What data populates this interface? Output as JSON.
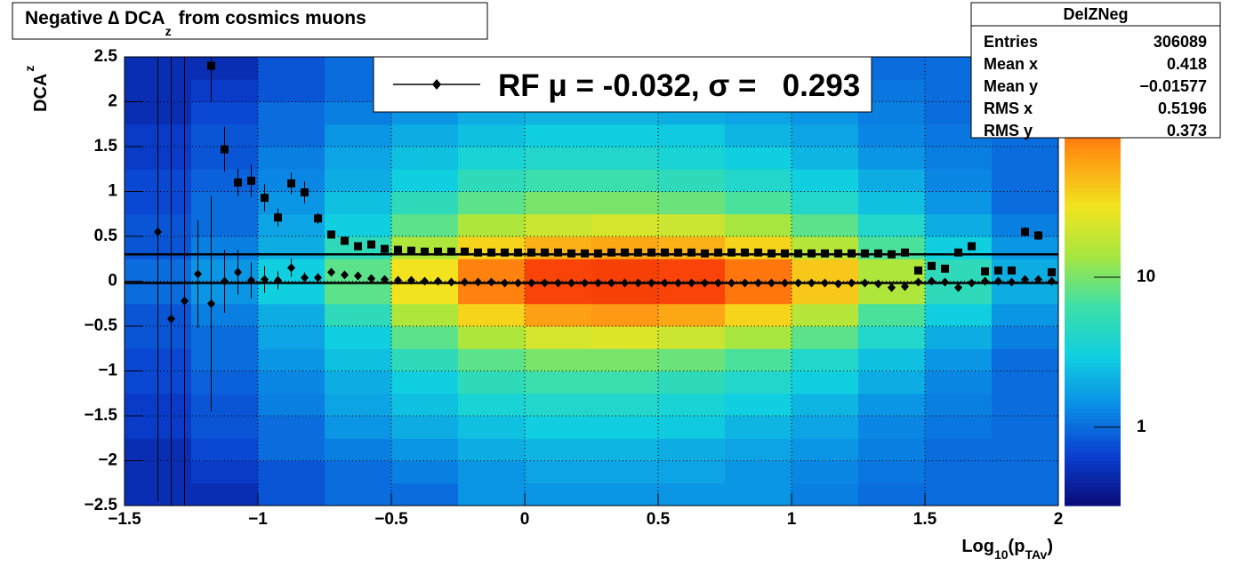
{
  "chart_data": {
    "type": "heatmap-profile",
    "title_parts": [
      "Negative ∆ DCA",
      "z",
      "from cosmics muons"
    ],
    "y_label_parts": [
      "DCA",
      "z"
    ],
    "x_label_parts": [
      "Log",
      "10",
      "(p",
      "TAv",
      ")"
    ],
    "xlim": [
      -1.5,
      2
    ],
    "ylim": [
      -2.5,
      2.5
    ],
    "xticks": [
      {
        "value": -1.5,
        "label": "−1.5"
      },
      {
        "value": -1,
        "label": "−1"
      },
      {
        "value": -0.5,
        "label": "−0.5"
      },
      0,
      0.5,
      1,
      1.5,
      2
    ],
    "yticks": [
      {
        "value": -2.5,
        "label": "−2.5"
      },
      {
        "value": -2,
        "label": "−2"
      },
      {
        "value": -1.5,
        "label": "−1.5"
      },
      {
        "value": -1,
        "label": "−1"
      },
      {
        "value": -0.5,
        "label": "−0.5"
      },
      0,
      0.5,
      1,
      1.5,
      2,
      2.5
    ],
    "grid": true,
    "heatmap": {
      "xbins": [
        -1.5,
        -1.25,
        -1,
        -0.75,
        -0.5,
        -0.25,
        0,
        0.25,
        0.5,
        0.75,
        1,
        1.25,
        1.5,
        1.75,
        2
      ],
      "ybins": [
        -2.5,
        -2.25,
        -2,
        -1.75,
        -1.5,
        -1.25,
        -1,
        -0.75,
        -0.5,
        -0.25,
        0,
        0.25,
        0.5,
        0.75,
        1,
        1.25,
        1.5,
        1.75,
        2,
        2.25,
        2.5
      ],
      "z": [
        [
          0.5,
          0.5,
          0.8,
          1,
          1,
          1.5,
          1.5,
          1.5,
          1.5,
          1.5,
          1.2,
          1,
          1,
          1
        ],
        [
          0.5,
          0.6,
          0.8,
          1,
          1.2,
          1.5,
          1.8,
          1.8,
          1.8,
          1.5,
          1.3,
          1.1,
          1,
          1
        ],
        [
          0.5,
          0.7,
          1,
          1.2,
          1.5,
          2,
          2.2,
          2.2,
          2,
          1.8,
          1.5,
          1.2,
          1,
          1
        ],
        [
          0.6,
          0.8,
          1,
          1.5,
          2,
          2.5,
          3,
          3,
          2.8,
          2.2,
          1.8,
          1.3,
          1.1,
          1
        ],
        [
          0.6,
          0.8,
          1.2,
          1.8,
          2.5,
          3.5,
          4,
          4,
          3.5,
          3,
          2.2,
          1.5,
          1.2,
          1
        ],
        [
          0.7,
          0.9,
          1.3,
          2,
          3,
          5,
          6,
          6,
          5,
          4,
          3,
          2,
          1.3,
          1
        ],
        [
          0.7,
          1,
          1.5,
          2.5,
          5,
          8,
          10,
          10,
          9,
          7,
          4,
          2.5,
          1.5,
          1
        ],
        [
          0.8,
          1,
          1.8,
          3,
          8,
          15,
          22,
          24,
          20,
          14,
          8,
          4,
          2,
          1.2
        ],
        [
          0.8,
          1.2,
          2,
          5,
          15,
          35,
          60,
          65,
          55,
          35,
          16,
          7,
          3,
          1.5
        ],
        [
          1,
          1.5,
          3,
          8,
          30,
          80,
          150,
          160,
          150,
          90,
          40,
          15,
          5,
          2
        ],
        [
          1,
          1.5,
          3,
          8,
          30,
          80,
          150,
          160,
          150,
          90,
          40,
          15,
          5,
          2
        ],
        [
          0.8,
          1.2,
          2,
          5,
          15,
          35,
          50,
          55,
          50,
          35,
          16,
          7,
          3,
          1.5
        ],
        [
          0.8,
          1,
          1.8,
          3,
          8,
          15,
          20,
          22,
          20,
          14,
          8,
          4,
          2,
          1.2
        ],
        [
          0.7,
          1,
          1.5,
          2.5,
          5,
          8,
          10,
          10,
          9,
          7,
          4,
          2.5,
          1.5,
          1
        ],
        [
          0.7,
          0.9,
          1.3,
          2,
          3,
          5,
          6,
          6,
          5,
          4,
          3,
          2,
          1.3,
          1
        ],
        [
          0.6,
          0.8,
          1.2,
          1.8,
          2.5,
          3.5,
          4,
          4,
          3.5,
          3,
          2.2,
          1.5,
          1.2,
          1
        ],
        [
          0.6,
          0.8,
          1,
          1.5,
          2,
          2.5,
          3,
          3,
          2.8,
          2.2,
          1.8,
          1.3,
          1.1,
          1
        ],
        [
          0.5,
          0.7,
          1,
          1.2,
          1.5,
          2,
          2.2,
          2.2,
          2,
          1.8,
          1.5,
          1.2,
          1,
          1
        ],
        [
          0.5,
          0.6,
          0.8,
          1,
          1.2,
          1.5,
          1.8,
          1.8,
          1.8,
          1.5,
          1.3,
          1.1,
          1,
          1
        ],
        [
          0.5,
          0.5,
          0.8,
          1,
          1,
          1.5,
          1.5,
          1.5,
          1.5,
          1.5,
          1.2,
          1,
          1,
          1
        ]
      ],
      "zlim": [
        0.3,
        295
      ],
      "zscale": "log",
      "zticks": [
        1,
        10
      ],
      "palette": [
        "#0b0b7a",
        "#0a3fd0",
        "#0a8ee6",
        "#10cfe0",
        "#3ee0a8",
        "#a6e640",
        "#f2e41e",
        "#ff9a12",
        "#ff4a08",
        "#d81a00"
      ]
    },
    "x": [
      -1.375,
      -1.325,
      -1.275,
      -1.225,
      -1.175,
      -1.125,
      -1.075,
      -1.025,
      -0.975,
      -0.925,
      -0.875,
      -0.825,
      -0.775,
      -0.725,
      -0.675,
      -0.625,
      -0.575,
      -0.525,
      -0.475,
      -0.425,
      -0.375,
      -0.325,
      -0.275,
      -0.225,
      -0.175,
      -0.125,
      -0.075,
      -0.025,
      0.025,
      0.075,
      0.125,
      0.175,
      0.225,
      0.275,
      0.325,
      0.375,
      0.425,
      0.475,
      0.525,
      0.575,
      0.625,
      0.675,
      0.725,
      0.775,
      0.825,
      0.875,
      0.925,
      0.975,
      1.025,
      1.075,
      1.125,
      1.175,
      1.225,
      1.275,
      1.325,
      1.375,
      1.425,
      1.475,
      1.525,
      1.575,
      1.625,
      1.675,
      1.725,
      1.775,
      1.825,
      1.875,
      1.925,
      1.975
    ],
    "series": [
      {
        "marker": "diamond",
        "color": "#000000",
        "values": [
          0.55,
          -0.42,
          -0.22,
          0.08,
          -0.25,
          0.0,
          0.1,
          0.01,
          0.02,
          0.01,
          0.15,
          0.04,
          0.04,
          0.1,
          0.07,
          0.06,
          0.03,
          0.02,
          0.01,
          0.01,
          0.0,
          0.0,
          -0.01,
          -0.01,
          -0.01,
          -0.01,
          -0.02,
          -0.02,
          -0.02,
          -0.02,
          -0.02,
          -0.02,
          -0.02,
          -0.02,
          -0.02,
          -0.02,
          -0.02,
          -0.02,
          -0.02,
          -0.02,
          -0.02,
          -0.02,
          -0.02,
          -0.02,
          -0.02,
          -0.02,
          -0.02,
          -0.02,
          -0.02,
          -0.02,
          -0.02,
          -0.03,
          -0.02,
          -0.02,
          -0.03,
          -0.07,
          -0.06,
          -0.01,
          0.0,
          -0.01,
          -0.07,
          -0.02,
          0.0,
          0.0,
          -0.01,
          0.02,
          0.02,
          0.0
        ],
        "errors": [
          3,
          3,
          3,
          0.6,
          1.2,
          0.35,
          0.25,
          0.2,
          0.15,
          0.1,
          0.1,
          0.06,
          0.05,
          null,
          null,
          null,
          null,
          null,
          null,
          null,
          null,
          null,
          null,
          null,
          null,
          null,
          null,
          null,
          null,
          null,
          null,
          null,
          null,
          null,
          null,
          null,
          null,
          null,
          null,
          null,
          null,
          null,
          null,
          null,
          null,
          null,
          null,
          null,
          null,
          null,
          null,
          null,
          null,
          null,
          null,
          null,
          null,
          null,
          null,
          null,
          null,
          null,
          null,
          null,
          null,
          null,
          null,
          null
        ]
      },
      {
        "marker": "square",
        "color": "#000000",
        "values": [
          null,
          null,
          null,
          null,
          2.4,
          1.47,
          1.1,
          1.12,
          0.93,
          0.71,
          1.09,
          0.99,
          0.7,
          0.52,
          0.45,
          0.39,
          0.41,
          0.36,
          0.35,
          0.34,
          0.33,
          0.33,
          0.33,
          0.33,
          0.32,
          0.32,
          0.32,
          0.32,
          0.32,
          0.32,
          0.32,
          0.31,
          0.31,
          0.31,
          0.32,
          0.32,
          0.32,
          0.32,
          0.32,
          0.32,
          0.32,
          0.31,
          0.32,
          0.32,
          0.32,
          0.32,
          0.31,
          0.31,
          0.31,
          0.31,
          0.31,
          0.31,
          0.31,
          0.31,
          0.31,
          0.3,
          0.32,
          0.12,
          0.17,
          0.14,
          0.32,
          0.39,
          0.11,
          0.12,
          0.12,
          0.55,
          0.51,
          0.1
        ],
        "errors": [
          null,
          null,
          null,
          null,
          0.4,
          0.25,
          0.15,
          0.18,
          0.15,
          0.1,
          0.12,
          0.12,
          0.06,
          null,
          null,
          null,
          null,
          null,
          null,
          null,
          null,
          null,
          null,
          null,
          null,
          null,
          null,
          null,
          null,
          null,
          null,
          null,
          null,
          null,
          null,
          null,
          null,
          null,
          null,
          null,
          null,
          null,
          null,
          null,
          null,
          null,
          null,
          null,
          null,
          null,
          null,
          null,
          null,
          null,
          null,
          null,
          null,
          null,
          null,
          null,
          null,
          null,
          null,
          null,
          null,
          0.05,
          0.05,
          null
        ]
      }
    ],
    "fit_lines": [
      0.3,
      -0.02
    ],
    "legend": {
      "label": "RF μ = -0.032, σ =   0.293",
      "marker": "diamond"
    },
    "stats": {
      "title": "DelZNeg",
      "rows": [
        [
          "Entries",
          "306089"
        ],
        [
          "Mean x",
          "0.418"
        ],
        [
          "Mean y",
          "−0.01577"
        ],
        [
          "RMS x",
          "0.5196"
        ],
        [
          "RMS y",
          "0.373"
        ]
      ]
    }
  }
}
